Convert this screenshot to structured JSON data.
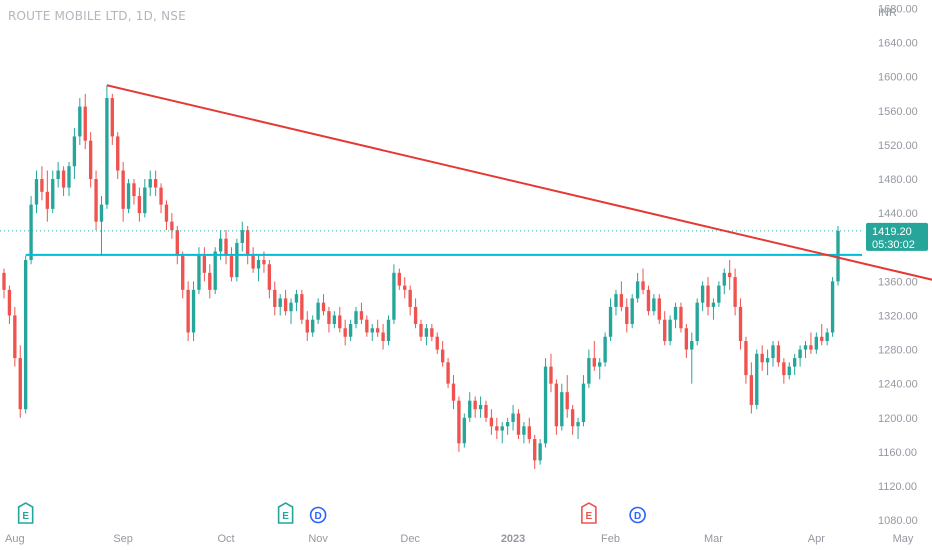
{
  "header": {
    "title": "ROUTE MOBILE LTD, 1D, NSE",
    "currency": "INR"
  },
  "chart_data": {
    "type": "candlestick",
    "title": "ROUTE MOBILE LTD, 1D, NSE",
    "currency": "INR",
    "ylim": [
      1066,
      1690
    ],
    "y_ticks": [
      1080,
      1120,
      1160,
      1200,
      1240,
      1280,
      1320,
      1360,
      1400,
      1440,
      1480,
      1520,
      1560,
      1600,
      1640,
      1680
    ],
    "y_tick_labels": [
      "1080.00",
      "1120.00",
      "1160.00",
      "1200.00",
      "1240.00",
      "1280.00",
      "1320.00",
      "1360.00",
      "1400.00",
      "1440.00",
      "1480.00",
      "1520.00",
      "1560.00",
      "1600.00",
      "1640.00",
      "1680.00"
    ],
    "x_labels": [
      {
        "label": "Aug",
        "index": 2
      },
      {
        "label": "Sep",
        "index": 22
      },
      {
        "label": "Oct",
        "index": 41
      },
      {
        "label": "Nov",
        "index": 58
      },
      {
        "label": "Dec",
        "index": 75
      },
      {
        "label": "2023",
        "index": 94
      },
      {
        "label": "Feb",
        "index": 112
      },
      {
        "label": "Mar",
        "index": 131
      },
      {
        "label": "Apr",
        "index": 150
      },
      {
        "label": "May",
        "index": 166
      }
    ],
    "last_price": {
      "value": "1419.20",
      "countdown": "05:30:02",
      "level": 1419.2
    },
    "colors": {
      "up": "#26a69a",
      "down": "#ef5350",
      "trendline": "#e53935",
      "hline": "#00bcd4",
      "event_e_up": "#26a69a",
      "event_e_down": "#ef5350",
      "event_d": "#2962ff",
      "event_flash": "#9c27b0"
    },
    "trendlines": [
      {
        "name": "descending-resistance",
        "from": {
          "index": 19,
          "price": 1590
        },
        "to": {
          "index": 178,
          "price": 1352
        }
      }
    ],
    "hlines": [
      {
        "name": "horizontal-support",
        "price": 1391
      }
    ],
    "events": [
      {
        "type": "E",
        "index": 4,
        "tone": "up"
      },
      {
        "type": "E",
        "index": 52,
        "tone": "up"
      },
      {
        "type": "D",
        "index": 58,
        "tone": "d"
      },
      {
        "type": "E",
        "index": 108,
        "tone": "down"
      },
      {
        "type": "D",
        "index": 117,
        "tone": "d"
      },
      {
        "type": "flash",
        "index": 175,
        "tone": "flash"
      }
    ],
    "candles": [
      [
        1370,
        1375,
        1340,
        1350
      ],
      [
        1350,
        1355,
        1310,
        1320
      ],
      [
        1320,
        1330,
        1260,
        1270
      ],
      [
        1270,
        1285,
        1200,
        1210
      ],
      [
        1210,
        1390,
        1205,
        1385
      ],
      [
        1385,
        1460,
        1380,
        1450
      ],
      [
        1450,
        1490,
        1440,
        1480
      ],
      [
        1480,
        1495,
        1455,
        1465
      ],
      [
        1465,
        1490,
        1430,
        1445
      ],
      [
        1445,
        1490,
        1440,
        1480
      ],
      [
        1480,
        1500,
        1470,
        1490
      ],
      [
        1490,
        1495,
        1460,
        1470
      ],
      [
        1470,
        1500,
        1460,
        1495
      ],
      [
        1495,
        1540,
        1480,
        1530
      ],
      [
        1530,
        1575,
        1520,
        1565
      ],
      [
        1565,
        1580,
        1515,
        1525
      ],
      [
        1525,
        1535,
        1470,
        1480
      ],
      [
        1480,
        1490,
        1420,
        1430
      ],
      [
        1430,
        1460,
        1390,
        1450
      ],
      [
        1450,
        1590,
        1445,
        1575
      ],
      [
        1575,
        1580,
        1520,
        1530
      ],
      [
        1530,
        1535,
        1480,
        1490
      ],
      [
        1490,
        1500,
        1430,
        1445
      ],
      [
        1445,
        1480,
        1440,
        1475
      ],
      [
        1475,
        1480,
        1450,
        1460
      ],
      [
        1460,
        1470,
        1430,
        1440
      ],
      [
        1440,
        1480,
        1435,
        1470
      ],
      [
        1470,
        1490,
        1460,
        1480
      ],
      [
        1480,
        1490,
        1460,
        1470
      ],
      [
        1470,
        1475,
        1440,
        1450
      ],
      [
        1450,
        1455,
        1420,
        1430
      ],
      [
        1430,
        1440,
        1410,
        1420
      ],
      [
        1420,
        1425,
        1380,
        1390
      ],
      [
        1390,
        1395,
        1340,
        1350
      ],
      [
        1350,
        1360,
        1290,
        1300
      ],
      [
        1300,
        1360,
        1290,
        1350
      ],
      [
        1350,
        1400,
        1345,
        1390
      ],
      [
        1390,
        1400,
        1360,
        1370
      ],
      [
        1370,
        1380,
        1340,
        1350
      ],
      [
        1350,
        1400,
        1345,
        1395
      ],
      [
        1395,
        1420,
        1385,
        1410
      ],
      [
        1410,
        1420,
        1380,
        1390
      ],
      [
        1390,
        1400,
        1360,
        1365
      ],
      [
        1365,
        1410,
        1360,
        1405
      ],
      [
        1405,
        1430,
        1395,
        1420
      ],
      [
        1420,
        1425,
        1380,
        1390
      ],
      [
        1390,
        1400,
        1370,
        1375
      ],
      [
        1375,
        1390,
        1360,
        1385
      ],
      [
        1385,
        1395,
        1370,
        1380
      ],
      [
        1380,
        1385,
        1340,
        1350
      ],
      [
        1350,
        1360,
        1320,
        1330
      ],
      [
        1330,
        1345,
        1320,
        1340
      ],
      [
        1340,
        1350,
        1320,
        1325
      ],
      [
        1325,
        1340,
        1310,
        1335
      ],
      [
        1335,
        1350,
        1325,
        1345
      ],
      [
        1345,
        1350,
        1310,
        1315
      ],
      [
        1315,
        1325,
        1290,
        1300
      ],
      [
        1300,
        1320,
        1295,
        1315
      ],
      [
        1315,
        1340,
        1310,
        1335
      ],
      [
        1335,
        1345,
        1320,
        1325
      ],
      [
        1325,
        1330,
        1300,
        1310
      ],
      [
        1310,
        1325,
        1305,
        1320
      ],
      [
        1320,
        1330,
        1300,
        1305
      ],
      [
        1305,
        1315,
        1285,
        1295
      ],
      [
        1295,
        1315,
        1290,
        1310
      ],
      [
        1310,
        1330,
        1305,
        1325
      ],
      [
        1325,
        1335,
        1310,
        1315
      ],
      [
        1315,
        1320,
        1295,
        1300
      ],
      [
        1300,
        1310,
        1290,
        1305
      ],
      [
        1305,
        1315,
        1295,
        1300
      ],
      [
        1300,
        1310,
        1280,
        1290
      ],
      [
        1290,
        1320,
        1285,
        1315
      ],
      [
        1315,
        1380,
        1310,
        1370
      ],
      [
        1370,
        1375,
        1350,
        1355
      ],
      [
        1355,
        1365,
        1340,
        1350
      ],
      [
        1350,
        1355,
        1320,
        1330
      ],
      [
        1330,
        1340,
        1305,
        1310
      ],
      [
        1310,
        1315,
        1290,
        1295
      ],
      [
        1295,
        1310,
        1285,
        1305
      ],
      [
        1305,
        1310,
        1290,
        1295
      ],
      [
        1295,
        1300,
        1275,
        1280
      ],
      [
        1280,
        1290,
        1260,
        1265
      ],
      [
        1265,
        1270,
        1235,
        1240
      ],
      [
        1240,
        1250,
        1210,
        1220
      ],
      [
        1220,
        1225,
        1160,
        1170
      ],
      [
        1170,
        1205,
        1165,
        1200
      ],
      [
        1200,
        1230,
        1195,
        1220
      ],
      [
        1220,
        1225,
        1200,
        1210
      ],
      [
        1210,
        1225,
        1200,
        1215
      ],
      [
        1215,
        1220,
        1195,
        1200
      ],
      [
        1200,
        1210,
        1180,
        1190
      ],
      [
        1190,
        1200,
        1175,
        1185
      ],
      [
        1185,
        1195,
        1170,
        1190
      ],
      [
        1190,
        1200,
        1180,
        1195
      ],
      [
        1195,
        1215,
        1185,
        1205
      ],
      [
        1205,
        1210,
        1175,
        1180
      ],
      [
        1180,
        1195,
        1170,
        1190
      ],
      [
        1190,
        1200,
        1170,
        1175
      ],
      [
        1175,
        1180,
        1140,
        1150
      ],
      [
        1150,
        1175,
        1145,
        1170
      ],
      [
        1170,
        1270,
        1165,
        1260
      ],
      [
        1260,
        1275,
        1230,
        1240
      ],
      [
        1240,
        1245,
        1180,
        1190
      ],
      [
        1190,
        1240,
        1185,
        1230
      ],
      [
        1230,
        1250,
        1200,
        1210
      ],
      [
        1210,
        1215,
        1180,
        1190
      ],
      [
        1190,
        1200,
        1175,
        1195
      ],
      [
        1195,
        1250,
        1190,
        1240
      ],
      [
        1240,
        1280,
        1235,
        1270
      ],
      [
        1270,
        1290,
        1255,
        1260
      ],
      [
        1260,
        1270,
        1245,
        1265
      ],
      [
        1265,
        1300,
        1260,
        1295
      ],
      [
        1295,
        1340,
        1290,
        1330
      ],
      [
        1330,
        1350,
        1320,
        1345
      ],
      [
        1345,
        1360,
        1325,
        1330
      ],
      [
        1330,
        1340,
        1300,
        1310
      ],
      [
        1310,
        1345,
        1305,
        1340
      ],
      [
        1340,
        1370,
        1335,
        1360
      ],
      [
        1360,
        1375,
        1345,
        1350
      ],
      [
        1350,
        1355,
        1320,
        1325
      ],
      [
        1325,
        1345,
        1320,
        1340
      ],
      [
        1340,
        1345,
        1310,
        1315
      ],
      [
        1315,
        1325,
        1285,
        1290
      ],
      [
        1290,
        1320,
        1285,
        1315
      ],
      [
        1315,
        1335,
        1305,
        1330
      ],
      [
        1330,
        1335,
        1300,
        1305
      ],
      [
        1305,
        1310,
        1270,
        1280
      ],
      [
        1280,
        1300,
        1240,
        1290
      ],
      [
        1290,
        1340,
        1285,
        1335
      ],
      [
        1335,
        1360,
        1325,
        1355
      ],
      [
        1355,
        1365,
        1320,
        1330
      ],
      [
        1330,
        1340,
        1315,
        1335
      ],
      [
        1335,
        1360,
        1330,
        1355
      ],
      [
        1355,
        1375,
        1345,
        1370
      ],
      [
        1370,
        1385,
        1350,
        1365
      ],
      [
        1365,
        1375,
        1320,
        1330
      ],
      [
        1330,
        1340,
        1280,
        1290
      ],
      [
        1290,
        1295,
        1240,
        1250
      ],
      [
        1250,
        1265,
        1205,
        1215
      ],
      [
        1215,
        1280,
        1210,
        1275
      ],
      [
        1275,
        1285,
        1255,
        1265
      ],
      [
        1265,
        1280,
        1250,
        1270
      ],
      [
        1270,
        1290,
        1260,
        1285
      ],
      [
        1285,
        1290,
        1260,
        1265
      ],
      [
        1265,
        1270,
        1240,
        1250
      ],
      [
        1250,
        1265,
        1245,
        1260
      ],
      [
        1260,
        1275,
        1250,
        1270
      ],
      [
        1270,
        1285,
        1260,
        1280
      ],
      [
        1280,
        1290,
        1270,
        1285
      ],
      [
        1285,
        1300,
        1275,
        1280
      ],
      [
        1280,
        1300,
        1275,
        1295
      ],
      [
        1295,
        1310,
        1285,
        1290
      ],
      [
        1290,
        1305,
        1285,
        1300
      ],
      [
        1300,
        1365,
        1295,
        1360
      ],
      [
        1360,
        1425,
        1355,
        1419.2
      ]
    ]
  }
}
